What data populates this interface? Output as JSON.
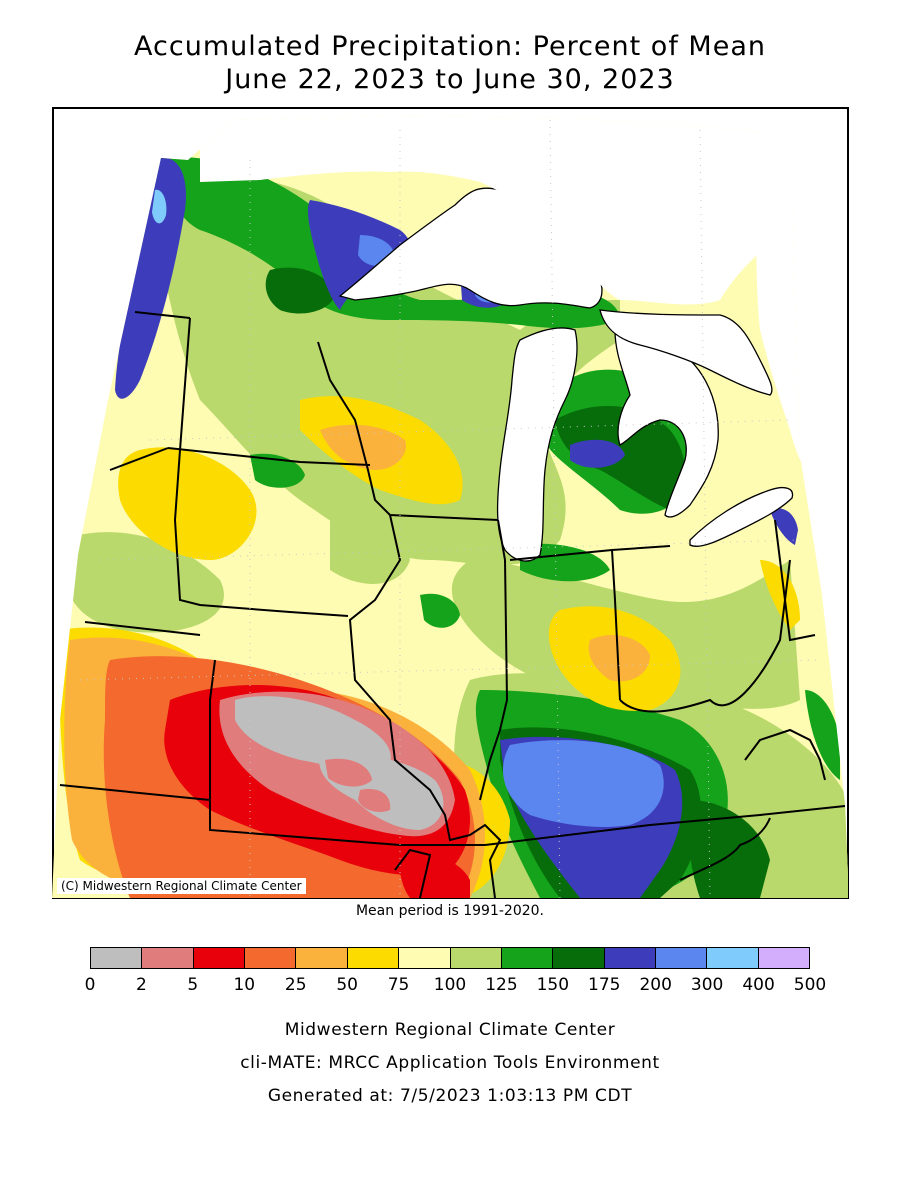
{
  "title": {
    "line1": "Accumulated Precipitation: Percent of Mean",
    "line2": "June 22, 2023 to June 30, 2023"
  },
  "map": {
    "region": "Midwest United States",
    "credit": "(C) Midwestern Regional Climate Center"
  },
  "mean_note": "Mean period is 1991-2020.",
  "legend": {
    "colors": [
      "#bebebe",
      "#e07c7c",
      "#e8000b",
      "#f46a2e",
      "#fbb23d",
      "#fbdb00",
      "#fefbb3",
      "#b9d96c",
      "#14a31a",
      "#066d0a",
      "#3d3dbb",
      "#5b86f0",
      "#7fcbfc",
      "#d3aefc"
    ],
    "tick_labels": [
      "0",
      "2",
      "5",
      "10",
      "25",
      "50",
      "75",
      "100",
      "125",
      "150",
      "175",
      "200",
      "300",
      "400",
      "500"
    ]
  },
  "footer": {
    "line1": "Midwestern Regional Climate Center",
    "line2": "cli-MATE: MRCC Application Tools Environment",
    "line3": "Generated at: 7/5/2023 1:03:13 PM CDT"
  }
}
